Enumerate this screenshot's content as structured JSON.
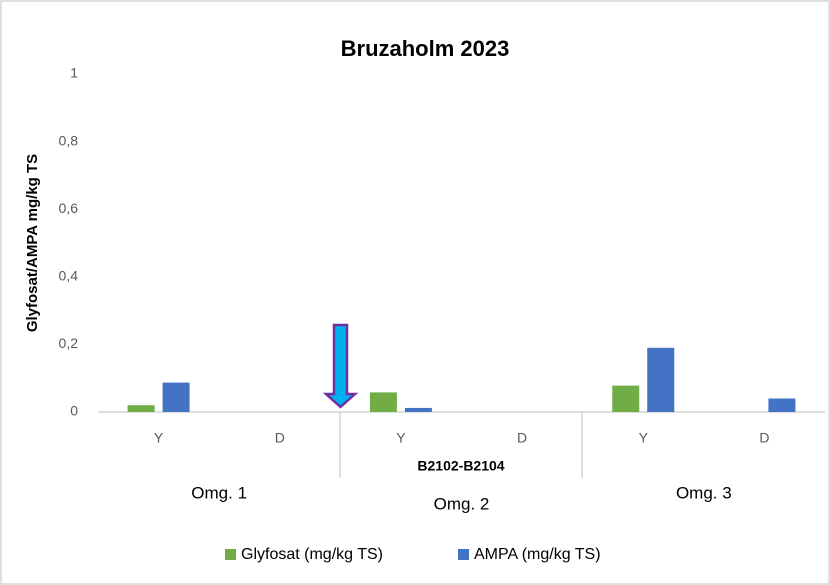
{
  "chart_data": {
    "type": "bar",
    "title": "Bruzaholm 2023",
    "y_label": "Glyfosat/AMPA mg/kg TS",
    "categories": [
      "Y",
      "D",
      "Y",
      "D",
      "Y",
      "D"
    ],
    "groups": [
      "Omg. 1",
      "Omg. 2",
      "Omg. 3"
    ],
    "annotations": [
      "B2102-B2104"
    ],
    "series": [
      {
        "name": "Glyfosat (mg/kg TS)",
        "color": "#70ad47",
        "values": [
          0.02,
          0,
          0.058,
          0,
          0.078,
          0
        ]
      },
      {
        "name": "AMPA (mg/kg TS)",
        "color": "#4472c4",
        "values": [
          0.087,
          0,
          0.012,
          0,
          0.19,
          0.04
        ]
      }
    ],
    "ylim": [
      0,
      1
    ],
    "yticks": [
      0,
      {
        "value": 0.2,
        "label": "0,2"
      },
      {
        "value": 0.4,
        "label": "0,4"
      },
      {
        "value": 0.6,
        "label": "0,6"
      },
      {
        "value": 0.8,
        "label": "0,8"
      },
      1
    ],
    "grid": false,
    "legend": "bottom"
  }
}
